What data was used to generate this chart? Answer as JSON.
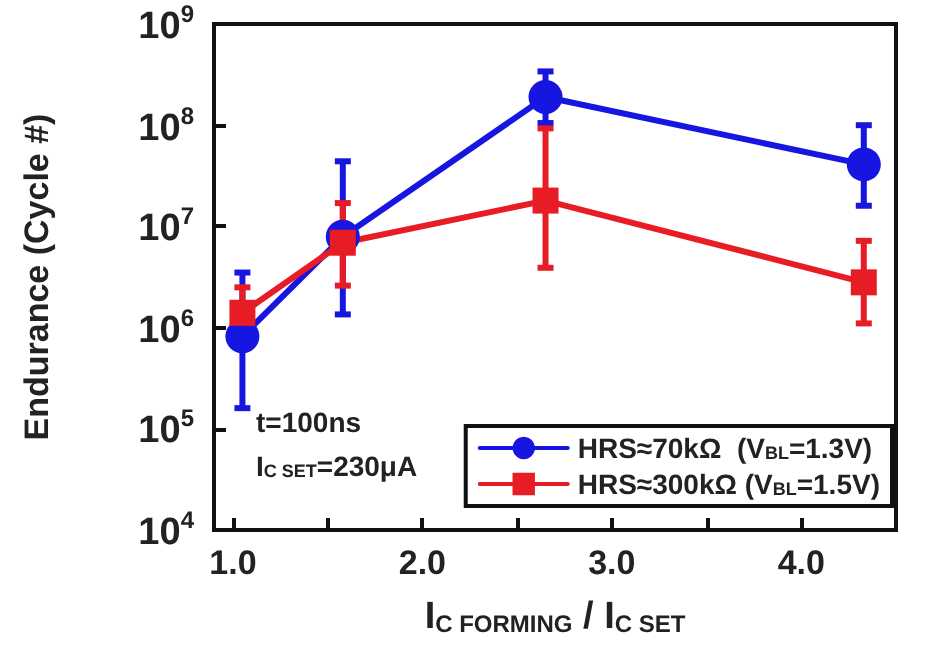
{
  "chart_data": {
    "type": "line",
    "xlabel": "I$_{C FORMING}$ / I$_{C SET}$",
    "ylabel": "Endurance (Cycle #)",
    "annotations": [
      "t=100ns",
      "I$_{C SET}$=230μA"
    ],
    "series": [
      {
        "name": "HRS≈70kΩ  (V$_{BL}$=1.3V)",
        "color": "#1616e0",
        "marker": "circle",
        "x": [
          1.05,
          1.58,
          2.65,
          4.33
        ],
        "values": [
          820000,
          7900000,
          190000000,
          41000000
        ],
        "errors": [
          [
            160000,
            3500000
          ],
          [
            1350000,
            44000000
          ],
          [
            105000000,
            340000000
          ],
          [
            16000000,
            100000000
          ]
        ]
      },
      {
        "name": "HRS≈300kΩ (V$_{BL}$=1.5V)",
        "color": "#e81c24",
        "marker": "square",
        "x": [
          1.05,
          1.58,
          2.65,
          4.33
        ],
        "values": [
          1400000,
          6900000,
          18000000,
          2800000
        ],
        "errors": [
          [
            1400000,
            2500000
          ],
          [
            2600000,
            17000000
          ],
          [
            3900000,
            93000000
          ],
          [
            1100000,
            7200000
          ]
        ]
      }
    ],
    "log": "y",
    "xlim": [
      0.9,
      4.5
    ],
    "xticks": [
      {
        "value": 1,
        "label": "1.0"
      },
      {
        "value": 1.5,
        "label": null
      },
      {
        "value": 2,
        "label": "2.0"
      },
      {
        "value": 2.5,
        "label": null
      },
      {
        "value": 3,
        "label": "3.0"
      },
      {
        "value": 3.5,
        "label": null
      },
      {
        "value": 4,
        "label": "4.0"
      }
    ],
    "ylim": [
      10000,
      1000000000
    ],
    "yticks": [
      {
        "value": 10000,
        "label": "10$^{4}$"
      },
      {
        "value": 100000,
        "label": "10$^{5}$"
      },
      {
        "value": 1000000,
        "label": "10$^{6}$"
      },
      {
        "value": 10000000,
        "label": "10$^{7}$"
      },
      {
        "value": 100000000,
        "label": "10$^{8}$"
      },
      {
        "value": 1000000000,
        "label": "10$^{9}$"
      }
    ],
    "grid": false,
    "legend": "bottom right",
    "line_style": "solid"
  }
}
